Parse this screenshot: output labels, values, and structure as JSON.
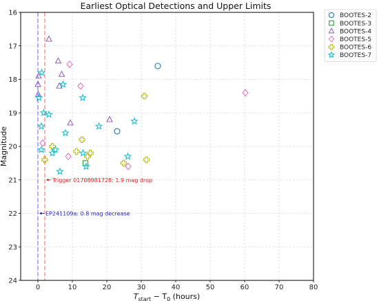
{
  "chart_data": {
    "type": "scatter",
    "title": "Earliest Optical Detections and Upper Limits",
    "xlabel_main": "T",
    "xlabel_sub1": "start",
    "xlabel_mid": " − T",
    "xlabel_sub2": "0",
    "xlabel_tail": " (hours)",
    "ylabel": "Magnitude",
    "xlim": [
      -5,
      80
    ],
    "ylim": [
      24,
      16
    ],
    "y_inverted": true,
    "grid": true,
    "legend_position": "outside-top-right",
    "xticks": [
      "0",
      "10",
      "20",
      "30",
      "40",
      "50",
      "60",
      "70",
      "80"
    ],
    "yticks": [
      "16",
      "17",
      "18",
      "19",
      "20",
      "21",
      "22",
      "23",
      "24"
    ],
    "series": [
      {
        "name": "BOOTES-2",
        "marker": "circle",
        "color": "#1f77b4",
        "points": [
          [
            34.8,
            17.6
          ],
          [
            23.0,
            19.55
          ]
        ]
      },
      {
        "name": "BOOTES-3",
        "marker": "square",
        "color": "#2ca02c",
        "points": [
          [
            13.8,
            20.5
          ]
        ]
      },
      {
        "name": "BOOTES-4",
        "marker": "triangle",
        "color": "#9467bd",
        "points": [
          [
            3.2,
            16.8
          ],
          [
            5.9,
            17.45
          ],
          [
            6.9,
            17.85
          ],
          [
            0.2,
            17.9
          ],
          [
            0.0,
            18.15
          ],
          [
            6.2,
            18.2
          ],
          [
            0.1,
            18.45
          ],
          [
            20.8,
            19.2
          ],
          [
            9.4,
            19.3
          ]
        ]
      },
      {
        "name": "BOOTES-5",
        "marker": "diamond",
        "color": "#e377c2",
        "points": [
          [
            9.2,
            17.55
          ],
          [
            12.4,
            18.2
          ],
          [
            60.2,
            18.4
          ],
          [
            1.4,
            19.9
          ],
          [
            8.8,
            20.3
          ],
          [
            26.2,
            20.6
          ]
        ]
      },
      {
        "name": "BOOTES-6",
        "marker": "plus",
        "color": "#bcbd22",
        "points": [
          [
            30.9,
            18.5
          ],
          [
            12.8,
            19.8
          ],
          [
            4.2,
            20.0
          ],
          [
            11.2,
            20.15
          ],
          [
            15.2,
            20.2
          ],
          [
            14.4,
            20.3
          ],
          [
            31.5,
            20.4
          ],
          [
            2.0,
            20.4
          ],
          [
            24.9,
            20.5
          ]
        ]
      },
      {
        "name": "BOOTES-7",
        "marker": "star",
        "color": "#17becf",
        "points": [
          [
            1.1,
            17.8
          ],
          [
            7.3,
            18.15
          ],
          [
            0.3,
            18.55
          ],
          [
            13.0,
            18.55
          ],
          [
            1.7,
            19.0
          ],
          [
            3.2,
            19.05
          ],
          [
            28.0,
            19.25
          ],
          [
            1.0,
            19.4
          ],
          [
            17.7,
            19.4
          ],
          [
            8.0,
            19.6
          ],
          [
            5.1,
            20.1
          ],
          [
            1.0,
            20.1
          ],
          [
            4.2,
            20.2
          ],
          [
            13.1,
            20.2
          ],
          [
            26.1,
            20.3
          ],
          [
            14.0,
            20.6
          ],
          [
            6.4,
            20.75
          ]
        ]
      }
    ],
    "vlines": [
      {
        "x": 0.0,
        "color": "#6b6bff",
        "style": "dashed"
      },
      {
        "x": 2.0,
        "color": "#ff6b6b",
        "style": "dashed"
      }
    ],
    "annotations": [
      {
        "text": "Trigger 01708981728: 1.9 mag drop",
        "x": 2.2,
        "y": 21.0,
        "color": "#e31a1c"
      },
      {
        "text": "EP241109a: 0.8 mag decrease",
        "x": 0.2,
        "y": 22.0,
        "color": "#1c1cbd"
      }
    ]
  }
}
